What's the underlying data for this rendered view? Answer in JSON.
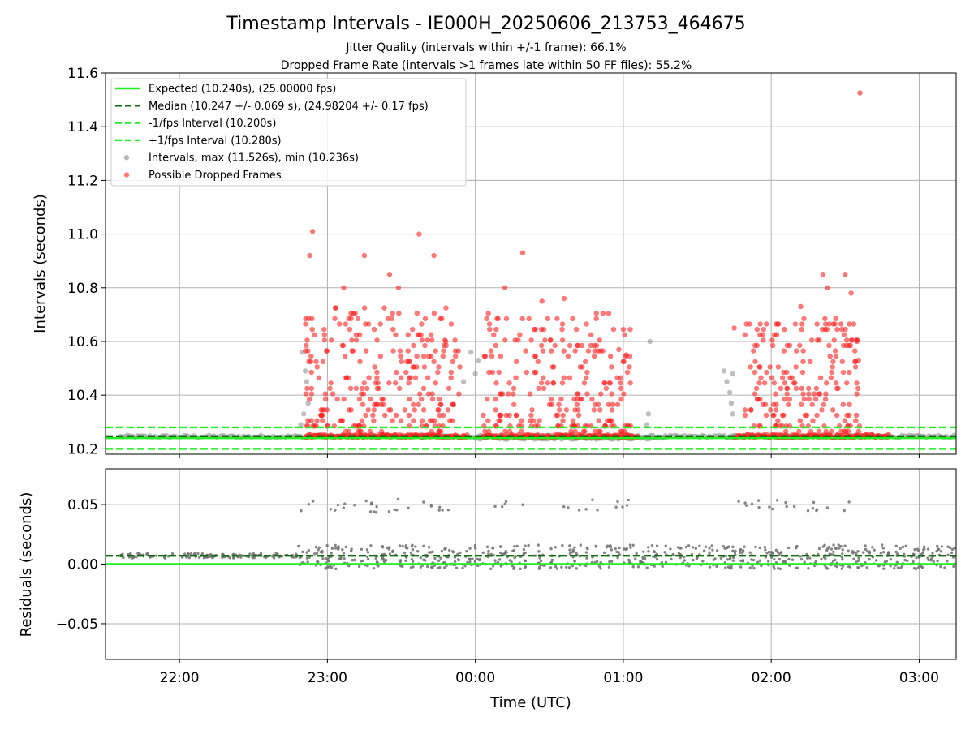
{
  "chart_data": {
    "title": "Timestamp Intervals - IE000H_20250606_213753_464675",
    "subtitles": [
      "Jitter Quality (intervals within +/-1 frame): 66.1%",
      "Dropped Frame Rate (intervals >1 frames late within 50 FF files): 55.2%"
    ],
    "xlabel": "Time (UTC)",
    "x_unit": "hours since 00:00 UTC",
    "xlim": [
      -2.5,
      3.25
    ],
    "x_ticks": [
      {
        "v": -2,
        "label": "22:00"
      },
      {
        "v": -1,
        "label": "23:00"
      },
      {
        "v": 0,
        "label": "00:00"
      },
      {
        "v": 1,
        "label": "01:00"
      },
      {
        "v": 2,
        "label": "02:00"
      },
      {
        "v": 3,
        "label": "03:00"
      }
    ],
    "panels": [
      {
        "type": "scatter",
        "ylabel": "Intervals (seconds)",
        "ylim": [
          10.18,
          11.6
        ],
        "y_ticks": [
          {
            "v": 10.2,
            "label": "10.2"
          },
          {
            "v": 10.4,
            "label": "10.4"
          },
          {
            "v": 10.6,
            "label": "10.6"
          },
          {
            "v": 10.8,
            "label": "10.8"
          },
          {
            "v": 11.0,
            "label": "11.0"
          },
          {
            "v": 11.2,
            "label": "11.2"
          },
          {
            "v": 11.4,
            "label": "11.4"
          },
          {
            "v": 11.6,
            "label": "11.6"
          }
        ],
        "grid": true,
        "legend_position": "top-left",
        "legend": [
          {
            "label": "Expected (10.240s), (25.00000 fps)",
            "kind": "solid-line",
            "color": "#22ee22"
          },
          {
            "label": "Median (10.247 +/- 0.069 s), (24.98204 +/- 0.17 fps)",
            "kind": "dashed-line",
            "color": "#0a6e0a"
          },
          {
            "label": "-1/fps Interval (10.200s)",
            "kind": "dashed-line",
            "color": "#22ee22"
          },
          {
            "label": "+1/fps Interval (10.280s)",
            "kind": "dashed-line",
            "color": "#22ee22"
          },
          {
            "label": "Intervals, max (11.526s), min (10.236s)",
            "kind": "marker",
            "color": "#8a8a8a"
          },
          {
            "label": "Possible Dropped Frames",
            "kind": "marker",
            "color": "#ff2020"
          }
        ],
        "hlines": [
          {
            "y": 10.24,
            "color": "#22ee22",
            "dash": false
          },
          {
            "y": 10.247,
            "color": "#0a6e0a",
            "dash": true
          },
          {
            "y": 10.2,
            "color": "#22ee22",
            "dash": true
          },
          {
            "y": 10.28,
            "color": "#22ee22",
            "dash": true
          }
        ],
        "normal_runs": [
          {
            "x0": -2.4,
            "x1": 3.25,
            "y": 10.246
          },
          {
            "x0": 0.0,
            "x1": 1.3,
            "y": 10.24
          },
          {
            "x0": 1.7,
            "x1": 2.2,
            "y": 10.245
          }
        ],
        "dropped_baseline_runs": [
          {
            "x0": -1.15,
            "x1": -0.05,
            "y": 10.247
          },
          {
            "x0": 0.05,
            "x1": 1.1,
            "y": 10.247
          },
          {
            "x0": 1.75,
            "x1": 2.8,
            "y": 10.247
          }
        ],
        "dropped_clusters": [
          {
            "x0": -1.15,
            "x1": -0.1,
            "ymin": 10.26,
            "ymax": 10.72,
            "count": 260
          },
          {
            "x0": 0.05,
            "x1": 1.05,
            "ymin": 10.26,
            "ymax": 10.7,
            "count": 230
          },
          {
            "x0": 1.82,
            "x1": 2.6,
            "ymin": 10.26,
            "ymax": 10.68,
            "count": 200
          }
        ],
        "dropped_frames": [
          {
            "x": -1.12,
            "y": 10.92
          },
          {
            "x": -1.1,
            "y": 11.01
          },
          {
            "x": -0.89,
            "y": 10.8
          },
          {
            "x": -0.75,
            "y": 10.92
          },
          {
            "x": -0.58,
            "y": 10.85
          },
          {
            "x": -0.52,
            "y": 10.8
          },
          {
            "x": -0.38,
            "y": 11.0
          },
          {
            "x": -0.28,
            "y": 10.92
          },
          {
            "x": -0.2,
            "y": 10.6
          },
          {
            "x": 0.2,
            "y": 10.8
          },
          {
            "x": 0.32,
            "y": 10.93
          },
          {
            "x": 0.45,
            "y": 10.75
          },
          {
            "x": 0.6,
            "y": 10.76
          },
          {
            "x": 0.97,
            "y": 10.57
          },
          {
            "x": 1.02,
            "y": 10.55
          },
          {
            "x": 1.75,
            "y": 10.65
          },
          {
            "x": 2.2,
            "y": 10.73
          },
          {
            "x": 2.35,
            "y": 10.85
          },
          {
            "x": 2.38,
            "y": 10.8
          },
          {
            "x": 2.5,
            "y": 10.85
          },
          {
            "x": 2.54,
            "y": 10.78
          },
          {
            "x": 2.58,
            "y": 10.6
          },
          {
            "x": 2.59,
            "y": 10.53
          },
          {
            "x": 2.6,
            "y": 11.526
          }
        ],
        "normal_outliers": [
          {
            "x": -1.17,
            "y": 10.56
          },
          {
            "x": -1.15,
            "y": 10.49
          },
          {
            "x": -1.14,
            "y": 10.45
          },
          {
            "x": -1.13,
            "y": 10.37
          },
          {
            "x": -1.16,
            "y": 10.33
          },
          {
            "x": -1.18,
            "y": 10.29
          },
          {
            "x": -0.08,
            "y": 10.45
          },
          {
            "x": -0.03,
            "y": 10.56
          },
          {
            "x": 0.0,
            "y": 10.48
          },
          {
            "x": 0.02,
            "y": 10.53
          },
          {
            "x": 1.18,
            "y": 10.6
          },
          {
            "x": 1.17,
            "y": 10.33
          },
          {
            "x": 1.16,
            "y": 10.29
          },
          {
            "x": 1.68,
            "y": 10.49
          },
          {
            "x": 1.7,
            "y": 10.45
          },
          {
            "x": 1.72,
            "y": 10.41
          },
          {
            "x": 1.73,
            "y": 10.37
          },
          {
            "x": 1.74,
            "y": 10.33
          },
          {
            "x": 1.74,
            "y": 10.48
          }
        ]
      },
      {
        "type": "scatter",
        "ylabel": "Residuals (seconds)",
        "ylim": [
          -0.08,
          0.08
        ],
        "y_ticks": [
          {
            "v": -0.05,
            "label": "−0.05"
          },
          {
            "v": 0.0,
            "label": "0.00"
          },
          {
            "v": 0.05,
            "label": "0.05"
          }
        ],
        "grid": true,
        "hlines": [
          {
            "y": 0.0,
            "color": "#22ee22",
            "dash": false
          },
          {
            "y": 0.007,
            "color": "#0a6e0a",
            "dash": true
          }
        ],
        "residual_bands": [
          {
            "x0": -2.4,
            "x1": -1.2,
            "ymin": 0.005,
            "ymax": 0.009,
            "count": 120
          },
          {
            "x0": -1.2,
            "x1": 3.25,
            "ymin": -0.004,
            "ymax": 0.016,
            "count": 700
          }
        ],
        "residual_high": [
          {
            "x0": -1.2,
            "x1": -0.1,
            "ymin": 0.043,
            "ymax": 0.055,
            "count": 28
          },
          {
            "x0": 0.1,
            "x1": 1.05,
            "ymin": 0.045,
            "ymax": 0.055,
            "count": 16
          },
          {
            "x0": 1.75,
            "x1": 2.65,
            "ymin": 0.044,
            "ymax": 0.054,
            "count": 20
          }
        ]
      }
    ]
  }
}
